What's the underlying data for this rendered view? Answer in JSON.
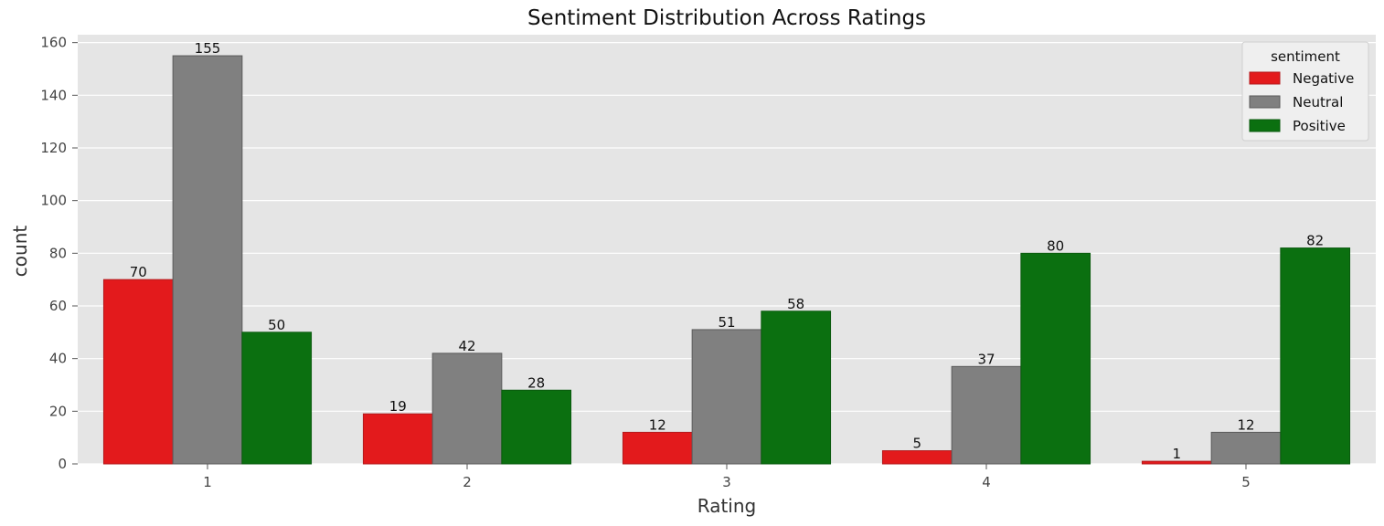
{
  "chart_data": {
    "type": "bar",
    "title": "Sentiment Distribution Across Ratings",
    "xlabel": "Rating",
    "ylabel": "count",
    "categories": [
      "1",
      "2",
      "3",
      "4",
      "5"
    ],
    "series": [
      {
        "name": "Negative",
        "color": "#e31a1c",
        "edge": "#b31a1c",
        "values": [
          70,
          19,
          12,
          5,
          1
        ]
      },
      {
        "name": "Neutral",
        "color": "#808080",
        "edge": "#5a5a5a",
        "values": [
          155,
          42,
          51,
          37,
          12
        ]
      },
      {
        "name": "Positive",
        "color": "#0b7010",
        "edge": "#0a5a0e",
        "values": [
          50,
          28,
          58,
          80,
          82
        ]
      }
    ],
    "ylim": [
      0,
      163
    ],
    "yticks": [
      0,
      20,
      40,
      60,
      80,
      100,
      120,
      140,
      160
    ],
    "grid": true,
    "background": "#e5e5e5",
    "legend": {
      "title": "sentiment",
      "placement": "top-right"
    }
  }
}
